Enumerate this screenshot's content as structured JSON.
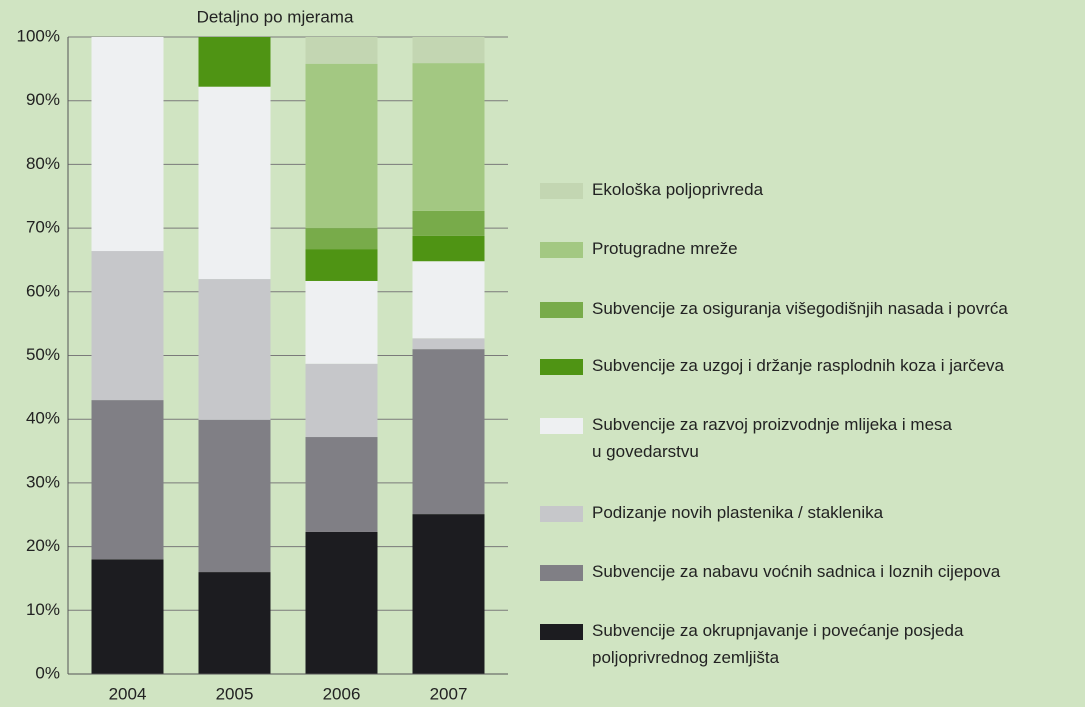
{
  "chart_data": {
    "type": "stacked_bar",
    "title": "Detaljno po mjerama",
    "categories": [
      "2004",
      "2005",
      "2006",
      "2007"
    ],
    "series": [
      {
        "name": "Subvencije za okrupnjavanje i povećanje posjeda\npoljoprivrednog zemljišta",
        "color": "#1c1c20",
        "values": [
          18,
          16,
          22.3,
          25.1
        ]
      },
      {
        "name": "Subvencije za nabavu voćnih sadnica i loznih cijepova",
        "color": "#807f85",
        "values": [
          25,
          23.9,
          14.9,
          25.9
        ]
      },
      {
        "name": "Podizanje novih plastenika / staklenika",
        "color": "#c6c7ca",
        "values": [
          23.4,
          22.1,
          11.5,
          1.7
        ]
      },
      {
        "name": "Subvencije za razvoj proizvodnje mlijeka i mesa\nu govedarstvu",
        "color": "#eef0f2",
        "values": [
          33.6,
          30.2,
          13,
          12.1
        ]
      },
      {
        "name": "Subvencije za uzgoj i držanje rasplodnih koza i jarčeva",
        "color": "#4f9414",
        "values": [
          0,
          7.8,
          5,
          4
        ]
      },
      {
        "name": "Subvencije za osiguranja višegodišnjih nasada i povrća",
        "color": "#78ab4a",
        "values": [
          0,
          0,
          3.3,
          3.9
        ]
      },
      {
        "name": "Protugradne mreže",
        "color": "#a3c882",
        "values": [
          0,
          0,
          25.8,
          23.2
        ]
      },
      {
        "name": "Ekološka poljoprivreda",
        "color": "#c3d6b2",
        "values": [
          0,
          0,
          4.2,
          4.1
        ]
      }
    ],
    "ylim": [
      0,
      100
    ],
    "yticks": [
      {
        "value": 0,
        "label": "0%"
      },
      {
        "value": 10,
        "label": "10%"
      },
      {
        "value": 20,
        "label": "20%"
      },
      {
        "value": 30,
        "label": "30%"
      },
      {
        "value": 40,
        "label": "40%"
      },
      {
        "value": 50,
        "label": "50%"
      },
      {
        "value": 60,
        "label": "60%"
      },
      {
        "value": 70,
        "label": "70%"
      },
      {
        "value": 80,
        "label": "80%"
      },
      {
        "value": 90,
        "label": "90%"
      },
      {
        "value": 100,
        "label": "100%"
      }
    ],
    "grid": true,
    "legend": "right"
  }
}
